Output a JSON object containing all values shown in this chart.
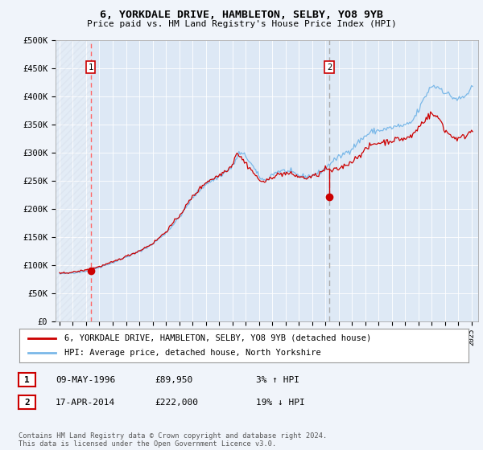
{
  "title": "6, YORKDALE DRIVE, HAMBLETON, SELBY, YO8 9YB",
  "subtitle": "Price paid vs. HM Land Registry's House Price Index (HPI)",
  "legend_line1": "6, YORKDALE DRIVE, HAMBLETON, SELBY, YO8 9YB (detached house)",
  "legend_line2": "HPI: Average price, detached house, North Yorkshire",
  "footnote": "Contains HM Land Registry data © Crown copyright and database right 2024.\nThis data is licensed under the Open Government Licence v3.0.",
  "transaction1": {
    "label": "1",
    "date": "09-MAY-1996",
    "price": "£89,950",
    "hpi": "3% ↑ HPI"
  },
  "transaction2": {
    "label": "2",
    "date": "17-APR-2014",
    "price": "£222,000",
    "hpi": "19% ↓ HPI"
  },
  "marker1_year": 1996.35,
  "marker1_value": 89950,
  "marker2_year": 2014.29,
  "marker2_value": 222000,
  "marker2_curve_value": 272000,
  "vline1_year": 1996.35,
  "vline2_year": 2014.29,
  "hpi_color": "#7ab8e8",
  "price_color": "#cc0000",
  "marker_color": "#cc0000",
  "vline1_color": "#ff6666",
  "vline2_color": "#aaaaaa",
  "background_color": "#f0f4fa",
  "plot_bg_color": "#dde8f5",
  "hatch_color": "#c0c8d8",
  "ylim": [
    0,
    500000
  ],
  "yticks": [
    0,
    50000,
    100000,
    150000,
    200000,
    250000,
    300000,
    350000,
    400000,
    450000,
    500000
  ],
  "xmin": 1993.7,
  "xmax": 2025.5
}
